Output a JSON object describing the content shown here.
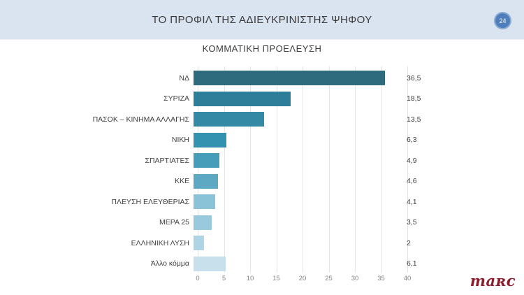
{
  "header": {
    "title": "ΤΟ ΠΡΟΦΙΛ ΤΗΣ ΑΔΙΕΥΚΡΙΝΙΣΤΗΣ ΨΗΦΟΥ",
    "page_number": "24",
    "background_color": "#dae3f0",
    "badge_color": "#4e7fbc"
  },
  "chart_data": {
    "type": "bar",
    "orientation": "horizontal",
    "title": "ΚΟΜΜΑΤΙΚΗ ΠΡΟΕΛΕΥΣΗ",
    "categories": [
      "ΝΔ",
      "ΣΥΡΙΖΑ",
      "ΠΑΣΟΚ – ΚΙΝΗΜΑ ΑΛΛΑΓΗΣ",
      "ΝΙΚΗ",
      "ΣΠΑΡΤΙΑΤΕΣ",
      "ΚΚΕ",
      "ΠΛΕΥΣΗ ΕΛΕΥΘΕΡΙΑΣ",
      "ΜΕΡΑ 25",
      "ΕΛΛΗΝΙΚΗ ΛΥΣΗ",
      "Άλλο κόμμα"
    ],
    "values": [
      36.5,
      18.5,
      13.5,
      6.3,
      4.9,
      4.6,
      4.1,
      3.5,
      2,
      6.1
    ],
    "value_labels": [
      "36,5",
      "18,5",
      "13,5",
      "6,3",
      "4,9",
      "4,6",
      "4,1",
      "3,5",
      "2",
      "6,1"
    ],
    "bar_colors": [
      "#2d6b7d",
      "#2e7e9a",
      "#3489a4",
      "#3292b0",
      "#459dba",
      "#5da9c4",
      "#8ac2d8",
      "#99c9dc",
      "#afd4e3",
      "#c7e0eb"
    ],
    "xlim": [
      0,
      40
    ],
    "x_ticks": [
      "0",
      "5",
      "10",
      "15",
      "20",
      "25",
      "30",
      "35",
      "40"
    ],
    "grid": true,
    "legend": false
  },
  "footer": {
    "logo_text": "maʀc",
    "logo_color": "#8a1e2d"
  }
}
